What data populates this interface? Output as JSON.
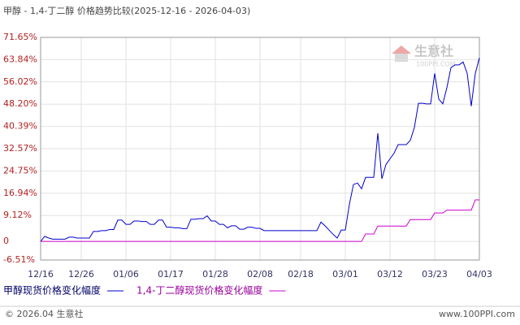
{
  "chart_data": {
    "type": "line",
    "title": "甲醇 - 1,4-丁二醇 价格趋势比较(2025-12-16 - 2026-04-03)",
    "categories": [
      "12/16",
      null,
      null,
      null,
      null,
      null,
      null,
      null,
      null,
      null,
      "12/26",
      null,
      null,
      null,
      null,
      null,
      null,
      null,
      null,
      null,
      null,
      "01/06",
      null,
      null,
      null,
      null,
      null,
      null,
      null,
      null,
      null,
      null,
      "01/17",
      null,
      null,
      null,
      null,
      null,
      null,
      null,
      null,
      null,
      null,
      "01/28",
      null,
      null,
      null,
      null,
      null,
      null,
      null,
      null,
      null,
      null,
      "02/08",
      null,
      null,
      null,
      null,
      null,
      null,
      null,
      null,
      null,
      "02/18",
      null,
      null,
      null,
      null,
      null,
      null,
      null,
      null,
      null,
      null,
      "03/01",
      null,
      null,
      null,
      null,
      null,
      null,
      null,
      null,
      null,
      null,
      "03/12",
      null,
      null,
      null,
      null,
      null,
      null,
      null,
      null,
      null,
      null,
      "03/23",
      null,
      null,
      null,
      null,
      null,
      null,
      null,
      null,
      null,
      null,
      "04/03"
    ],
    "ylim": [
      -6.51,
      71.65
    ],
    "yticks": [
      {
        "value": 71.65,
        "label": "71.65%"
      },
      {
        "value": 63.84,
        "label": "63.84%"
      },
      {
        "value": 56.02,
        "label": "56.02%"
      },
      {
        "value": 48.2,
        "label": "48.20%"
      },
      {
        "value": 40.39,
        "label": "40.39%"
      },
      {
        "value": 32.57,
        "label": "32.57%"
      },
      {
        "value": 24.75,
        "label": "24.75%"
      },
      {
        "value": 16.94,
        "label": "16.94%"
      },
      {
        "value": 9.12,
        "label": "9.12%"
      },
      0,
      {
        "value": -6.51,
        "label": "-6.51%"
      }
    ],
    "grid": true,
    "series": [
      {
        "name": "甲醇现货价格变化幅度",
        "color": "#0000cc",
        "values": [
          0,
          1.8,
          1.2,
          0.8,
          0.8,
          0.8,
          0.8,
          1.5,
          1.5,
          1.2,
          1.2,
          1.2,
          1.2,
          3.5,
          3.5,
          3.8,
          3.8,
          4.2,
          4.2,
          7.5,
          7.5,
          6,
          6,
          7.2,
          7.2,
          7,
          7,
          6,
          6,
          7.5,
          7.5,
          5,
          5,
          4.8,
          4.8,
          4.5,
          4.5,
          7.8,
          7.8,
          8,
          8,
          9,
          7.2,
          7.2,
          6,
          6,
          4.8,
          5.5,
          5.5,
          4.3,
          4.3,
          5,
          5,
          4.6,
          4.6,
          3.8,
          3.8,
          3.8,
          3.8,
          3.8,
          3.8,
          3.8,
          3.8,
          3.8,
          3.8,
          3.8,
          3.8,
          3.8,
          3.8,
          6.8,
          5.5,
          4,
          2.5,
          1.2,
          4,
          4,
          13,
          20,
          20.5,
          18.5,
          22.5,
          22.5,
          22.5,
          38,
          22,
          27,
          29,
          31,
          34,
          34,
          34,
          35.5,
          40,
          48.5,
          48.5,
          48.3,
          48.3,
          59,
          50,
          48.3,
          54,
          61,
          62,
          62,
          63,
          59,
          47.5,
          59,
          64.5
        ]
      },
      {
        "name": "1,4-丁二醇现货价格变化幅度",
        "color": "#cc00cc",
        "values": [
          0,
          0,
          0,
          0,
          0,
          0,
          0,
          0,
          0,
          0,
          0,
          0,
          0,
          0,
          0,
          0,
          0,
          0,
          0,
          0,
          0,
          0,
          0,
          0,
          0,
          0,
          0,
          0,
          0,
          0,
          0,
          0,
          0,
          0,
          0,
          0,
          0,
          0,
          0,
          0,
          0,
          0,
          0,
          0,
          0,
          0,
          0,
          0,
          0,
          0,
          0,
          0,
          0,
          0,
          0,
          0,
          0,
          0,
          0,
          0,
          0,
          0,
          0,
          0,
          0,
          0,
          0,
          0,
          0,
          0,
          0,
          0,
          0,
          0,
          0,
          0,
          0,
          0,
          0,
          0,
          2.6,
          2.6,
          2.6,
          5.4,
          5.4,
          5.4,
          5.4,
          5.4,
          5.4,
          5.4,
          5.4,
          7.7,
          7.7,
          7.7,
          7.7,
          7.7,
          7.7,
          10,
          10,
          10,
          11,
          11,
          11,
          11,
          11,
          11,
          11,
          14.6,
          14.6
        ]
      }
    ]
  },
  "watermark": {
    "brand": "生意社",
    "site": "100PPI.COM"
  },
  "footer": {
    "copyright": "© 2026.04 生意社",
    "url": "www.100PPI.com"
  }
}
